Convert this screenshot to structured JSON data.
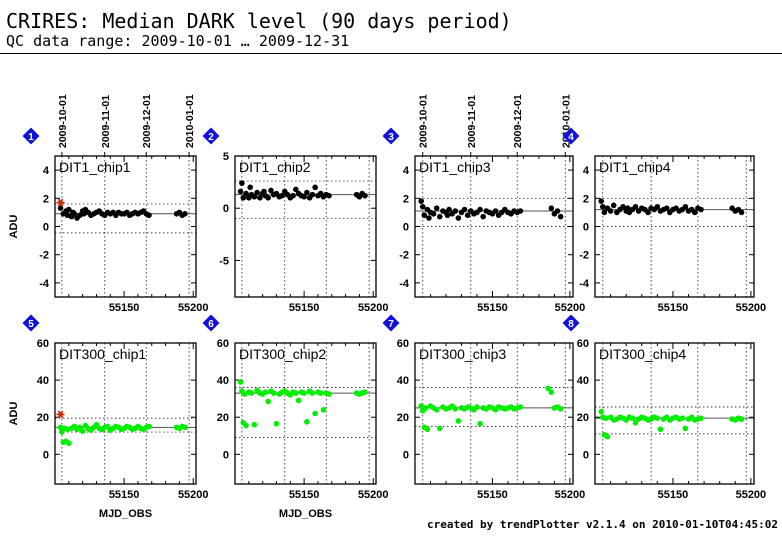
{
  "header": {
    "title": "CRIRES: Median DARK level (90 days period)",
    "subtitle": "QC data range: 2009-10-01 … 2009-12-31"
  },
  "footer": {
    "text": "created by trendPlotter v2.1.4 on 2010-01-10T04:45:02"
  },
  "colors": {
    "dark_points": "#000000",
    "bright_points": "#00ee00",
    "outlier": "#cc2200",
    "badge": "#1111dd",
    "grid": "#000000"
  },
  "date_axis": {
    "labels": [
      "2009-10-01",
      "2009-11-01",
      "2009-12-01",
      "2010-01-01"
    ],
    "mjd": [
      55105,
      55136,
      55166,
      55197
    ]
  },
  "chart_data": [
    {
      "type": "scatter",
      "badge": "1",
      "title": "DIT1_chip1",
      "ylabel": "ADU",
      "xlabel": "",
      "xlim": [
        55100,
        55202
      ],
      "ylim": [
        -5,
        5
      ],
      "yticks": [
        -4,
        -2,
        0,
        2,
        4
      ],
      "xticks": [
        55150,
        55200
      ],
      "median": 0.9,
      "dotted": [
        -0.45,
        1.6
      ],
      "color": "#000000",
      "show_dates": true,
      "outlier": {
        "x": 55104,
        "y": 1.7
      },
      "x": [
        55104,
        55106,
        55108,
        55109,
        55110,
        55112,
        55113,
        55114,
        55116,
        55118,
        55120,
        55121,
        55122,
        55124,
        55126,
        55128,
        55130,
        55132,
        55134,
        55136,
        55138,
        55140,
        55142,
        55144,
        55146,
        55148,
        55150,
        55152,
        55154,
        55156,
        55158,
        55160,
        55162,
        55164,
        55166,
        55168,
        55188,
        55190,
        55192,
        55194
      ],
      "y": [
        1.3,
        0.9,
        1.1,
        0.8,
        1.2,
        0.7,
        1.0,
        0.9,
        0.6,
        0.8,
        1.1,
        0.9,
        1.2,
        1.0,
        0.8,
        0.9,
        1.0,
        1.1,
        0.9,
        0.8,
        1.0,
        0.9,
        1.0,
        0.8,
        1.0,
        0.9,
        0.9,
        1.0,
        0.8,
        0.9,
        1.0,
        0.9,
        1.0,
        1.1,
        0.9,
        0.8,
        0.9,
        1.0,
        0.8,
        0.9
      ]
    },
    {
      "type": "scatter",
      "badge": "2",
      "title": "DIT1_chip2",
      "ylabel": "",
      "xlabel": "",
      "xlim": [
        55100,
        55202
      ],
      "ylim": [
        -8.5,
        5
      ],
      "yticks": [
        -5,
        0,
        5
      ],
      "xticks": [
        55150,
        55200
      ],
      "median": 1.3,
      "dotted": [
        -1.0,
        2.6
      ],
      "color": "#000000",
      "show_dates": false,
      "x": [
        55104,
        55105,
        55106,
        55108,
        55110,
        55111,
        55112,
        55114,
        55116,
        55118,
        55120,
        55121,
        55122,
        55124,
        55126,
        55128,
        55130,
        55132,
        55134,
        55136,
        55138,
        55140,
        55142,
        55144,
        55146,
        55148,
        55150,
        55152,
        55154,
        55156,
        55158,
        55160,
        55162,
        55164,
        55166,
        55168,
        55188,
        55190,
        55192,
        55194
      ],
      "y": [
        1.6,
        2.4,
        1.0,
        1.4,
        1.0,
        2.0,
        1.3,
        1.1,
        1.5,
        1.0,
        1.4,
        1.6,
        1.2,
        1.0,
        1.7,
        1.3,
        1.4,
        1.1,
        1.2,
        1.6,
        1.3,
        1.0,
        1.2,
        1.8,
        1.4,
        1.2,
        1.1,
        1.5,
        1.0,
        1.3,
        2.0,
        1.2,
        1.4,
        1.1,
        1.3,
        1.2,
        1.3,
        1.1,
        1.4,
        1.2
      ]
    },
    {
      "type": "scatter",
      "badge": "3",
      "title": "DIT1_chip3",
      "ylabel": "",
      "xlabel": "",
      "xlim": [
        55100,
        55202
      ],
      "ylim": [
        -5,
        5
      ],
      "yticks": [
        -4,
        -2,
        0,
        2,
        4
      ],
      "xticks": [
        55150,
        55200
      ],
      "median": 1.1,
      "dotted": [
        0.0,
        2.0
      ],
      "color": "#000000",
      "show_dates": true,
      "x": [
        55104,
        55105,
        55106,
        55108,
        55109,
        55110,
        55112,
        55114,
        55116,
        55118,
        55120,
        55121,
        55122,
        55124,
        55126,
        55128,
        55130,
        55132,
        55134,
        55136,
        55138,
        55140,
        55142,
        55144,
        55146,
        55148,
        55150,
        55152,
        55154,
        55156,
        55158,
        55160,
        55162,
        55164,
        55166,
        55168,
        55188,
        55190,
        55192,
        55194
      ],
      "y": [
        1.8,
        1.4,
        0.8,
        1.2,
        0.6,
        1.0,
        0.9,
        1.3,
        0.7,
        1.1,
        1.0,
        0.8,
        1.2,
        0.9,
        1.1,
        0.6,
        1.0,
        1.2,
        0.8,
        1.1,
        0.9,
        1.0,
        1.2,
        0.7,
        1.1,
        1.0,
        0.9,
        1.1,
        0.8,
        1.0,
        1.2,
        1.0,
        0.9,
        1.1,
        1.0,
        1.1,
        1.3,
        0.9,
        1.1,
        0.7
      ]
    },
    {
      "type": "scatter",
      "badge": "4",
      "title": "DIT1_chip4",
      "ylabel": "",
      "xlabel": "",
      "xlim": [
        55100,
        55202
      ],
      "ylim": [
        -5,
        5
      ],
      "yticks": [
        -4,
        -2,
        0,
        2,
        4
      ],
      "xticks": [
        55150,
        55200
      ],
      "median": 1.2,
      "dotted": [
        0.0,
        2.0
      ],
      "color": "#000000",
      "show_dates": false,
      "x": [
        55104,
        55105,
        55106,
        55108,
        55110,
        55112,
        55114,
        55116,
        55118,
        55120,
        55121,
        55122,
        55124,
        55126,
        55128,
        55130,
        55132,
        55134,
        55136,
        55138,
        55140,
        55142,
        55144,
        55146,
        55148,
        55150,
        55152,
        55154,
        55156,
        55158,
        55160,
        55162,
        55164,
        55166,
        55168,
        55188,
        55190,
        55192,
        55194
      ],
      "y": [
        1.8,
        1.4,
        1.0,
        1.3,
        1.1,
        1.5,
        1.0,
        1.2,
        1.4,
        1.1,
        1.3,
        1.0,
        1.2,
        1.4,
        1.1,
        1.3,
        1.2,
        1.0,
        1.3,
        1.2,
        1.4,
        1.1,
        1.2,
        1.3,
        1.0,
        1.2,
        1.3,
        1.1,
        1.2,
        1.4,
        1.1,
        1.2,
        1.0,
        1.3,
        1.2,
        1.3,
        1.1,
        1.2,
        1.0
      ]
    },
    {
      "type": "scatter",
      "badge": "5",
      "title": "DIT300_chip1",
      "ylabel": "ADU",
      "xlabel": "MJD_OBS",
      "xlim": [
        55100,
        55202
      ],
      "ylim": [
        -16,
        60
      ],
      "yticks": [
        0,
        20,
        40,
        60
      ],
      "xticks": [
        55150,
        55200
      ],
      "median": 14.5,
      "dotted": [
        12.0,
        19.5
      ],
      "color": "#00ee00",
      "show_dates": false,
      "outlier": {
        "x": 55104,
        "y": 21.5
      },
      "x": [
        55104,
        55105,
        55106,
        55107,
        55108,
        55109,
        55110,
        55112,
        55114,
        55116,
        55118,
        55120,
        55122,
        55124,
        55126,
        55128,
        55130,
        55132,
        55134,
        55136,
        55138,
        55140,
        55142,
        55144,
        55146,
        55148,
        55150,
        55152,
        55154,
        55156,
        55158,
        55160,
        55162,
        55164,
        55166,
        55168,
        55188,
        55190,
        55192,
        55194
      ],
      "y": [
        14.5,
        12.0,
        6.5,
        14.0,
        7.0,
        13.5,
        6.0,
        14.0,
        15.0,
        13.5,
        14.5,
        12.5,
        15.5,
        14.0,
        13.0,
        14.5,
        16.0,
        14.0,
        13.5,
        14.5,
        15.0,
        13.0,
        14.0,
        15.0,
        14.5,
        13.5,
        14.0,
        15.0,
        14.5,
        13.5,
        14.0,
        15.0,
        14.0,
        13.5,
        14.5,
        15.0,
        14.5,
        14.0,
        15.0,
        14.5
      ]
    },
    {
      "type": "scatter",
      "badge": "6",
      "title": "DIT300_chip2",
      "ylabel": "",
      "xlabel": "",
      "xlim": [
        55100,
        55202
      ],
      "ylim": [
        -16,
        60
      ],
      "yticks": [
        0,
        20,
        40,
        60
      ],
      "xticks": [
        55150,
        55200
      ],
      "median": 33.0,
      "dotted": [
        9.0,
        36.0
      ],
      "color": "#00ee00",
      "show_dates": false,
      "x": [
        55104,
        55105,
        55106,
        55107,
        55108,
        55110,
        55112,
        55114,
        55116,
        55118,
        55120,
        55122,
        55124,
        55126,
        55128,
        55130,
        55132,
        55134,
        55136,
        55138,
        55140,
        55142,
        55144,
        55146,
        55148,
        55150,
        55152,
        55154,
        55156,
        55158,
        55160,
        55162,
        55164,
        55166,
        55168,
        55188,
        55190,
        55192,
        55194
      ],
      "y": [
        39.0,
        34.0,
        17.0,
        32.5,
        15.5,
        33.5,
        33.0,
        16.0,
        34.5,
        33.0,
        32.5,
        33.5,
        28.5,
        34.0,
        33.0,
        16.5,
        32.5,
        33.5,
        34.0,
        33.0,
        32.0,
        33.5,
        33.0,
        29.0,
        33.5,
        33.0,
        17.5,
        34.0,
        33.0,
        22.0,
        33.5,
        33.0,
        24.0,
        33.0,
        32.5,
        33.0,
        32.5,
        33.0,
        33.5
      ]
    },
    {
      "type": "scatter",
      "badge": "7",
      "title": "DIT300_chip3",
      "ylabel": "",
      "xlabel": "",
      "xlim": [
        55100,
        55202
      ],
      "ylim": [
        -16,
        60
      ],
      "yticks": [
        0,
        20,
        40,
        60
      ],
      "xticks": [
        55150,
        55200
      ],
      "median": 25.0,
      "dotted": [
        15.0,
        36.0
      ],
      "color": "#00ee00",
      "show_dates": false,
      "x": [
        55104,
        55105,
        55106,
        55107,
        55108,
        55110,
        55112,
        55114,
        55116,
        55118,
        55120,
        55122,
        55124,
        55126,
        55128,
        55130,
        55132,
        55134,
        55136,
        55138,
        55140,
        55142,
        55144,
        55146,
        55148,
        55150,
        55152,
        55154,
        55156,
        55158,
        55160,
        55162,
        55164,
        55166,
        55168,
        55186,
        55188,
        55190,
        55192,
        55194
      ],
      "y": [
        26.0,
        23.5,
        14.5,
        25.0,
        13.5,
        26.0,
        25.0,
        24.0,
        14.0,
        25.5,
        24.5,
        25.0,
        26.0,
        24.5,
        18.0,
        25.0,
        24.5,
        25.5,
        25.0,
        24.0,
        25.5,
        16.5,
        25.0,
        24.5,
        25.5,
        25.0,
        24.0,
        25.5,
        25.0,
        24.5,
        25.0,
        25.5,
        24.5,
        25.0,
        25.5,
        35.5,
        33.5,
        25.0,
        25.5,
        24.5
      ]
    },
    {
      "type": "scatter",
      "badge": "8",
      "title": "DIT300_chip4",
      "ylabel": "",
      "xlabel": "",
      "xlim": [
        55100,
        55202
      ],
      "ylim": [
        -16,
        60
      ],
      "yticks": [
        0,
        20,
        40,
        60
      ],
      "xticks": [
        55150,
        55200
      ],
      "median": 19.5,
      "dotted": [
        11.0,
        25.5
      ],
      "color": "#00ee00",
      "show_dates": false,
      "x": [
        55104,
        55105,
        55106,
        55107,
        55108,
        55110,
        55112,
        55114,
        55116,
        55118,
        55120,
        55122,
        55124,
        55126,
        55128,
        55130,
        55132,
        55134,
        55136,
        55138,
        55140,
        55142,
        55144,
        55146,
        55148,
        55150,
        55152,
        55154,
        55156,
        55158,
        55160,
        55162,
        55164,
        55166,
        55168,
        55188,
        55190,
        55192,
        55194
      ],
      "y": [
        23.0,
        20.0,
        10.5,
        19.5,
        9.5,
        20.0,
        18.5,
        19.0,
        20.0,
        19.5,
        18.5,
        20.0,
        19.5,
        17.0,
        19.0,
        20.0,
        19.5,
        18.5,
        19.0,
        20.0,
        19.5,
        13.5,
        19.0,
        20.0,
        18.5,
        19.5,
        20.0,
        19.0,
        19.5,
        14.0,
        19.0,
        20.0,
        18.5,
        19.0,
        19.5,
        19.0,
        18.5,
        19.5,
        19.0
      ]
    }
  ]
}
